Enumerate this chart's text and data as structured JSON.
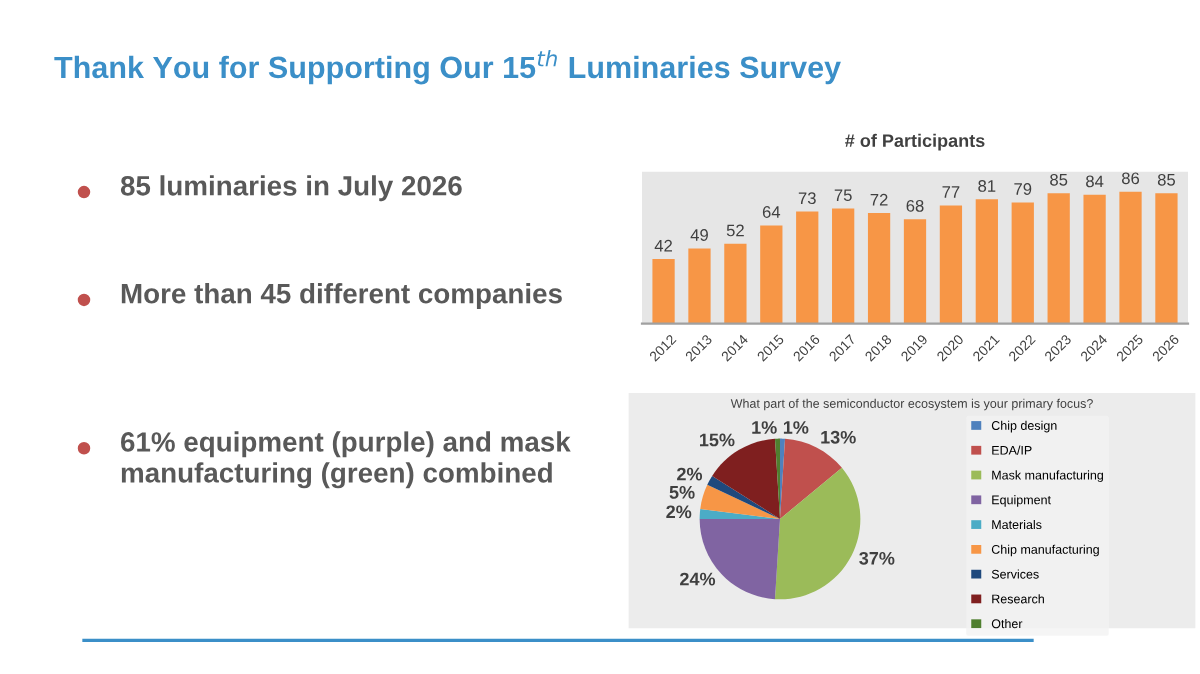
{
  "chart_data": [
    {
      "type": "other",
      "title": "Thank You for Supporting Our 15$^{th}$ Luminaries Survey",
      "annotations": [
        "85 luminaries in July 2026",
        "More than 45 different companies",
        "61% equipment (purple) and mask manufacturing (green) combined"
      ]
    },
    {
      "type": "bar",
      "title": "# of Participants",
      "categories": [
        "2012",
        "2013",
        "2014",
        "2015",
        "2016",
        "2017",
        "2018",
        "2019",
        "2020",
        "2021",
        "2022",
        "2023",
        "2024",
        "2025",
        "2026"
      ],
      "values": [
        42,
        49,
        52,
        64,
        73,
        75,
        72,
        68,
        77,
        81,
        79,
        85,
        84,
        86,
        85
      ],
      "color": "#f79646",
      "data_labels": true,
      "tick_labels": "x",
      "grid": false
    },
    {
      "type": "pie",
      "title": "What part of the semiconductor ecosystem is your primary focus?",
      "categories": [
        "Chip design",
        "EDA/IP",
        "Mask manufacturing",
        "Equipment",
        "Materials",
        "Chip manufacturing",
        "Services",
        "Research",
        "Other"
      ],
      "values": [
        1,
        13,
        37,
        24,
        2,
        5,
        2,
        15,
        1
      ],
      "colors": [
        "#4f81bd",
        "#c0504d",
        "#9bbb59",
        "#8064a2",
        "#4bacc6",
        "#f79646",
        "#1f497d",
        "#7f1f1f",
        "#4f7f2f"
      ],
      "value_labels": [
        "1%",
        "13%",
        "37%",
        "24%",
        "2%",
        "5%",
        "2%",
        "15%",
        "1%"
      ],
      "legend": "right"
    }
  ]
}
